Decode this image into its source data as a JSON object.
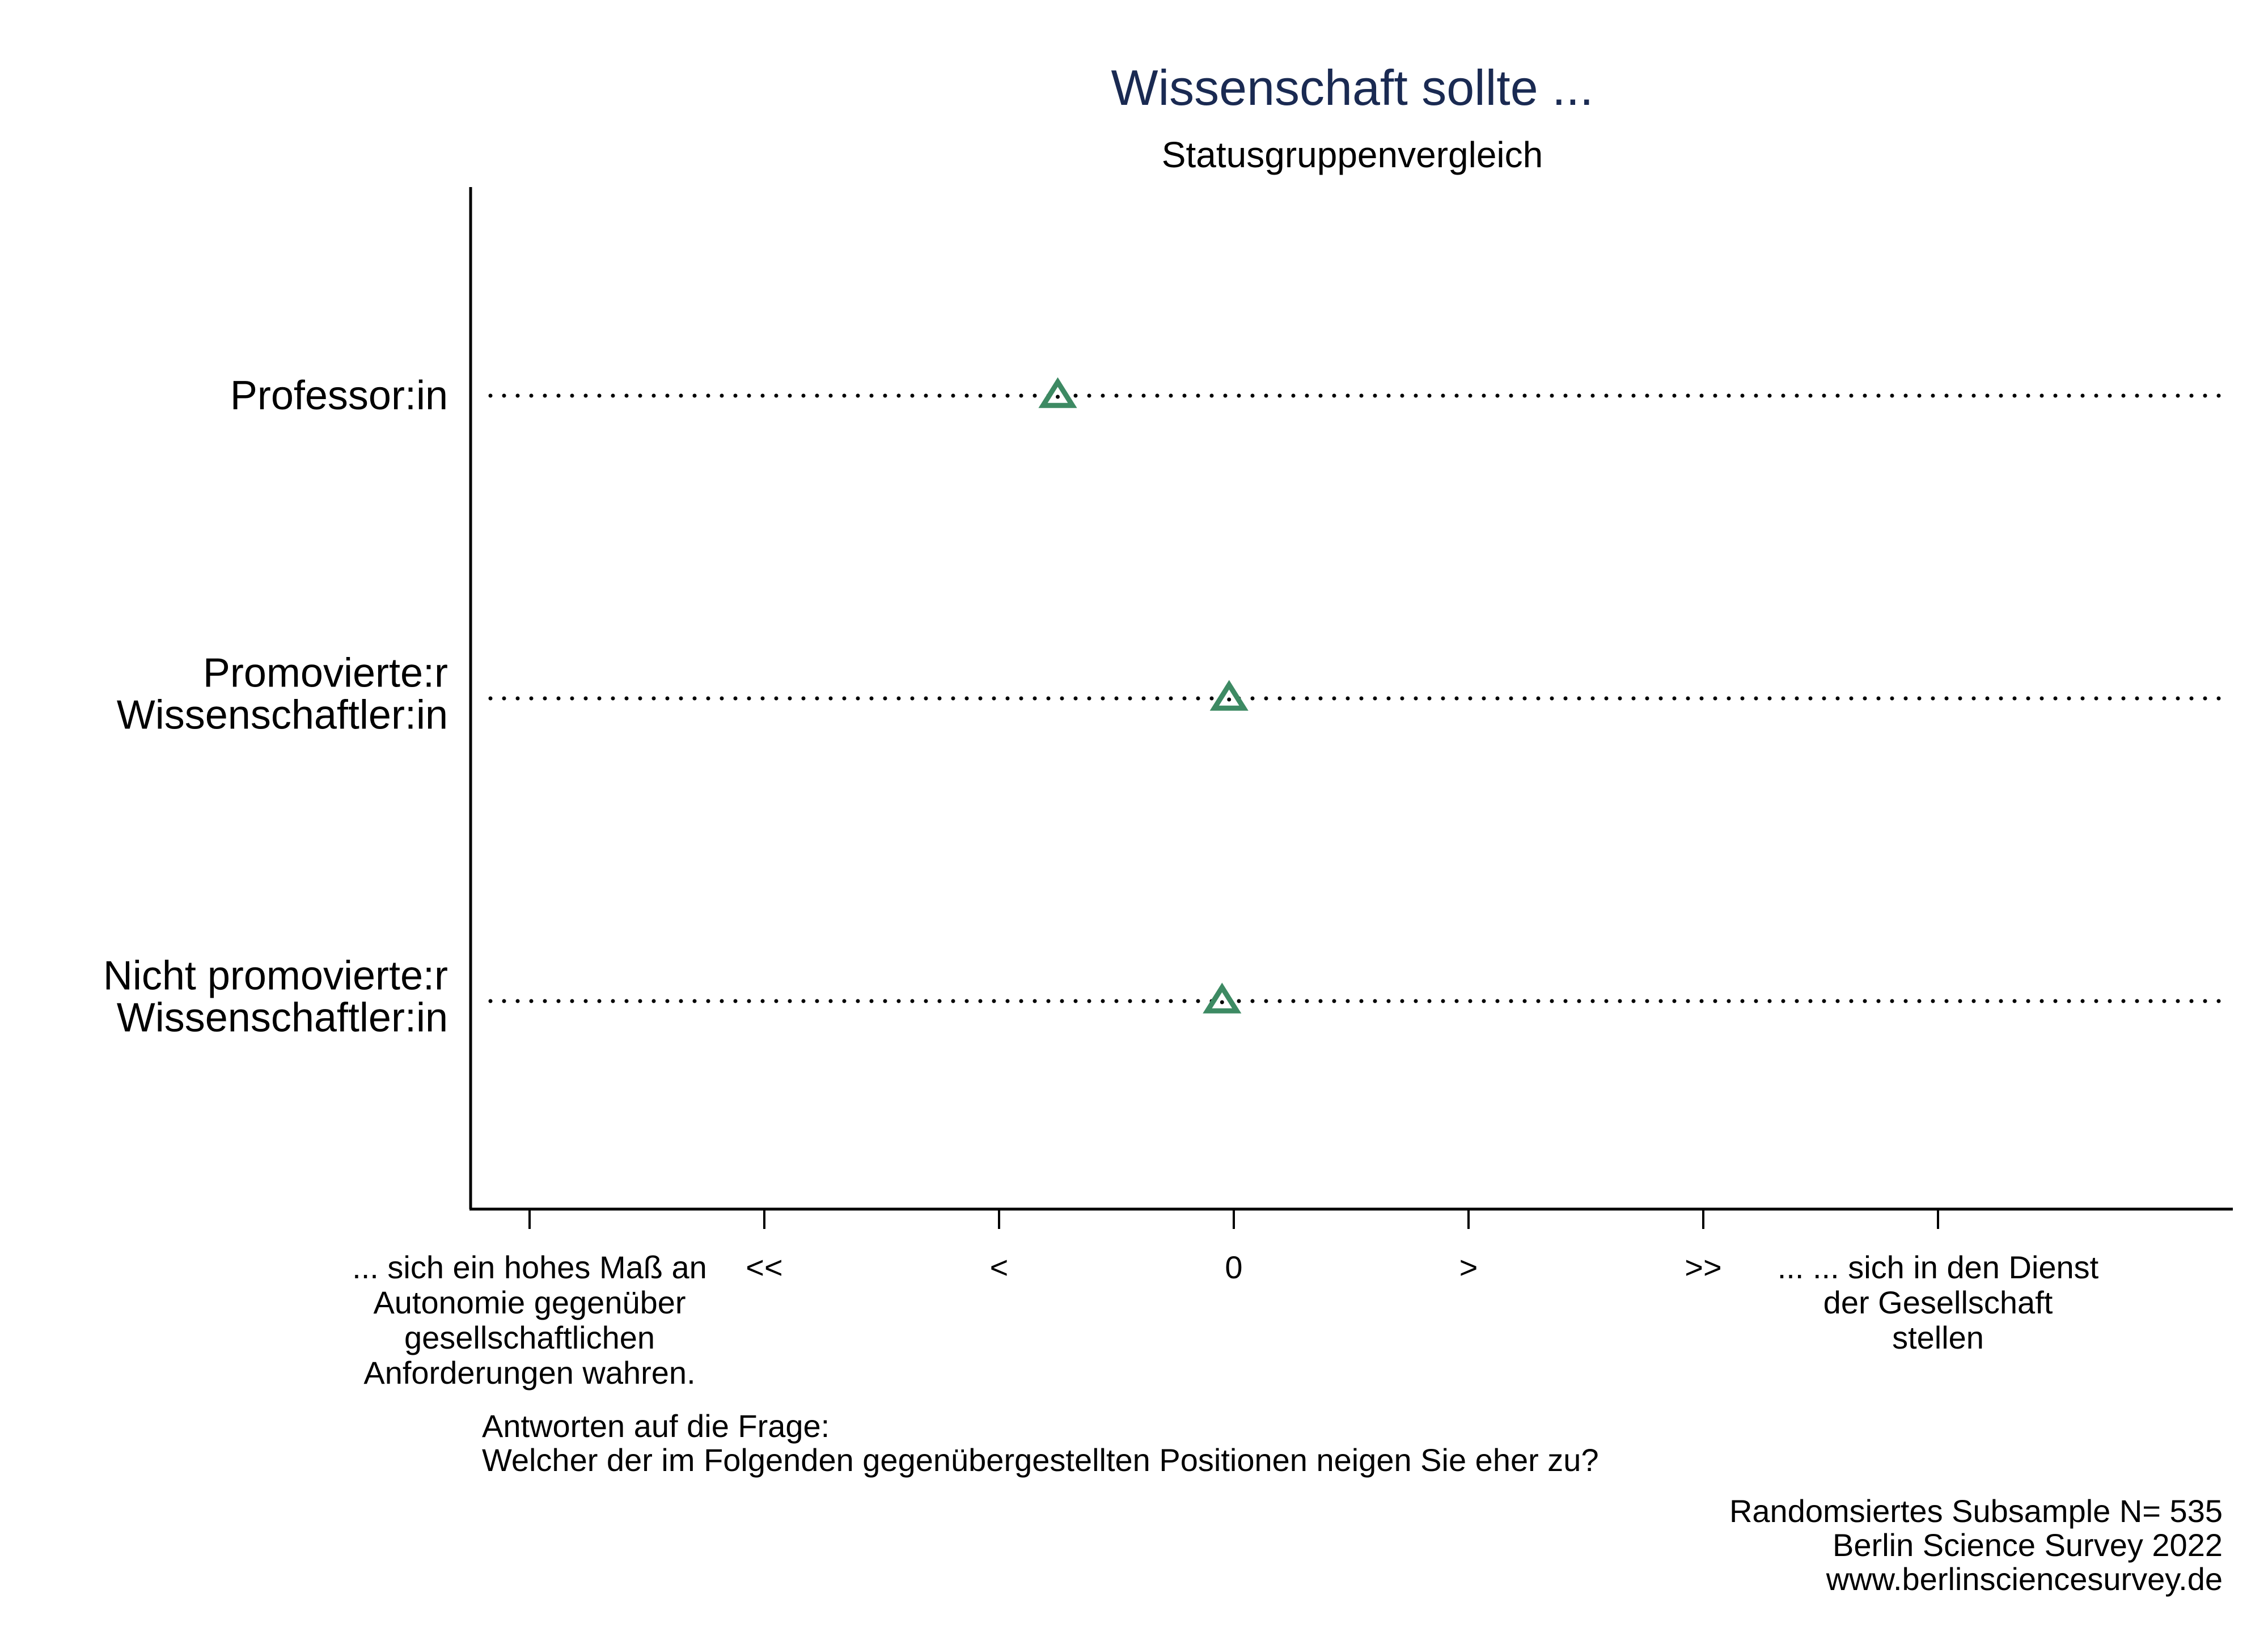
{
  "chart_data": {
    "type": "scatter",
    "title": "Wissenschaft sollte ...",
    "subtitle": "Statusgruppenvergleich",
    "categories": [
      [
        "Professor:in"
      ],
      [
        "Promovierte:r",
        "Wissenschaftler:in"
      ],
      [
        "Nicht promovierte:r",
        "Wissenschaftler:in"
      ]
    ],
    "values": [
      -0.75,
      -0.02,
      -0.05
    ],
    "xlim": [
      -3.0,
      4.25
    ],
    "ticks": [
      {
        "value": -3,
        "label": [
          "... sich ein hohes Maß an",
          "Autonomie gegenüber",
          "gesellschaftlichen",
          "Anforderungen wahren."
        ]
      },
      {
        "value": -2,
        "label": [
          "<<"
        ]
      },
      {
        "value": -1,
        "label": [
          "<"
        ]
      },
      {
        "value": 0,
        "label": [
          "0"
        ]
      },
      {
        "value": 1,
        "label": [
          ">"
        ]
      },
      {
        "value": 2,
        "label": [
          ">>"
        ]
      },
      {
        "value": 3,
        "label": [
          "... ... sich in den Dienst",
          "der Gesellschaft",
          "stellen"
        ]
      }
    ],
    "marker": "hollow-triangle",
    "grid": "dotted-horizontal",
    "legend": "none"
  },
  "question": {
    "line1": "Antworten auf die Frage:",
    "line2": "Welcher der im Folgenden gegenübergestellten Positionen neigen Sie eher zu?"
  },
  "source": {
    "line1": "Randomsiertes Subsample N= 535",
    "line2": "Berlin Science Survey 2022",
    "line3": "www.berlinsciencesurvey.de"
  },
  "colors": {
    "title": "#1a2a52",
    "marker": "#3d8a63",
    "axis": "#000000",
    "text": "#000000"
  }
}
